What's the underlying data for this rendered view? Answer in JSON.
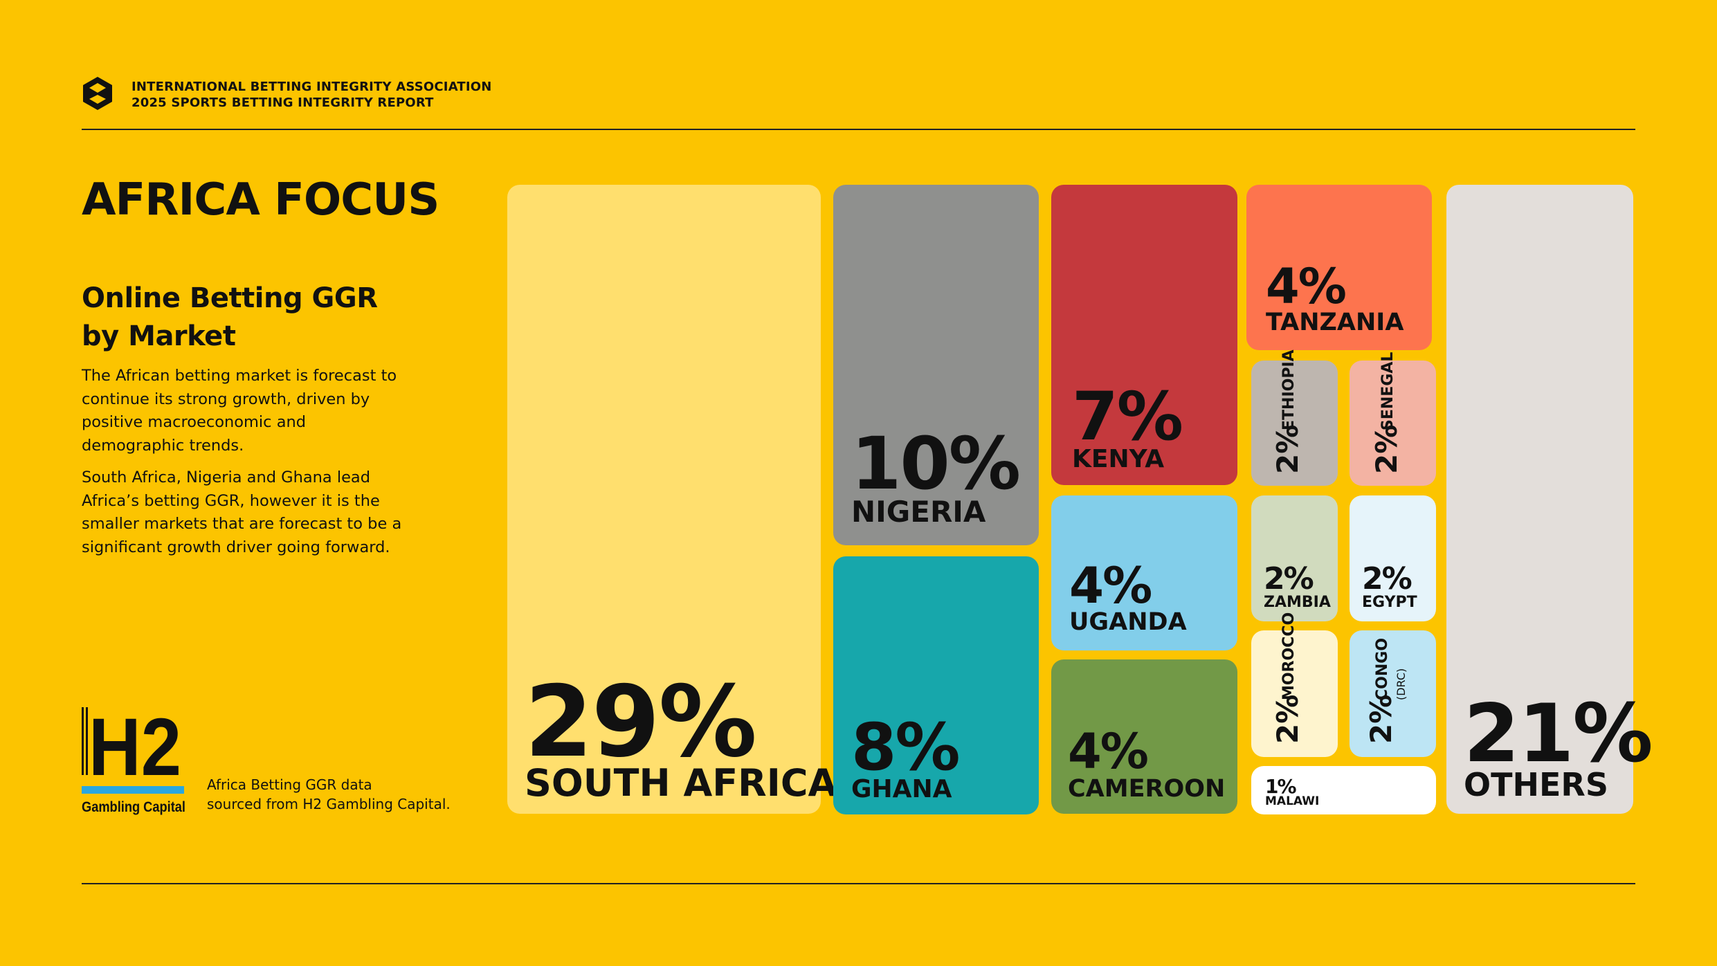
{
  "header": {
    "org": "INTERNATIONAL BETTING INTEGRITY ASSOCIATION",
    "report": "2025 SPORTS BETTING INTEGRITY REPORT"
  },
  "title": "AFRICA FOCUS",
  "subtitle_line1": "Online Betting GGR",
  "subtitle_line2": "by Market",
  "paragraphs": [
    "The African betting market is forecast to continue its strong growth, driven by positive macroeconomic and demographic trends.",
    "South Africa, Nigeria and Ghana lead Africa’s betting GGR, however it is the smaller markets that are forecast to be a significant growth driver going forward."
  ],
  "source": {
    "line1": "Africa Betting GGR data",
    "line2": "sourced from H2 Gambling Capital.",
    "logo_text": "H2",
    "logo_caption": "Gambling Capital",
    "logo_bar_color": "#2AA7DF"
  },
  "colors": {
    "background": "#FCC400",
    "rule": "#222222"
  },
  "chart_data": {
    "type": "treemap",
    "unit": "%",
    "items": [
      {
        "label": "SOUTH AFRICA",
        "value": 29,
        "display": "29%",
        "color": "#FFDF6E"
      },
      {
        "label": "NIGERIA",
        "value": 10,
        "display": "10%",
        "color": "#8F908E"
      },
      {
        "label": "GHANA",
        "value": 8,
        "display": "8%",
        "color": "#17A7AB"
      },
      {
        "label": "KENYA",
        "value": 7,
        "display": "7%",
        "color": "#C4393D"
      },
      {
        "label": "UGANDA",
        "value": 4,
        "display": "4%",
        "color": "#82CEEA"
      },
      {
        "label": "CAMEROON",
        "value": 4,
        "display": "4%",
        "color": "#729947"
      },
      {
        "label": "TANZANIA",
        "value": 4,
        "display": "4%",
        "color": "#FD744E"
      },
      {
        "label": "ETHIOPIA",
        "value": 2,
        "display": "2%",
        "color": "#BEB6AF"
      },
      {
        "label": "SENEGAL",
        "value": 2,
        "display": "2%",
        "color": "#F3B3A3"
      },
      {
        "label": "ZAMBIA",
        "value": 2,
        "display": "2%",
        "color": "#D1DBBE"
      },
      {
        "label": "EGYPT",
        "value": 2,
        "display": "2%",
        "color": "#E6F4FA"
      },
      {
        "label": "MOROCCO",
        "value": 2,
        "display": "2%",
        "color": "#FEF4CE"
      },
      {
        "label": "CONGO",
        "sublabel": "(DRC)",
        "value": 2,
        "display": "2%",
        "color": "#BDE5F4"
      },
      {
        "label": "MALAWI",
        "value": 1,
        "display": "1%",
        "color": "#FFFFFF"
      },
      {
        "label": "OTHERS",
        "value": 21,
        "display": "21%",
        "color": "#E3DEDA"
      }
    ]
  }
}
